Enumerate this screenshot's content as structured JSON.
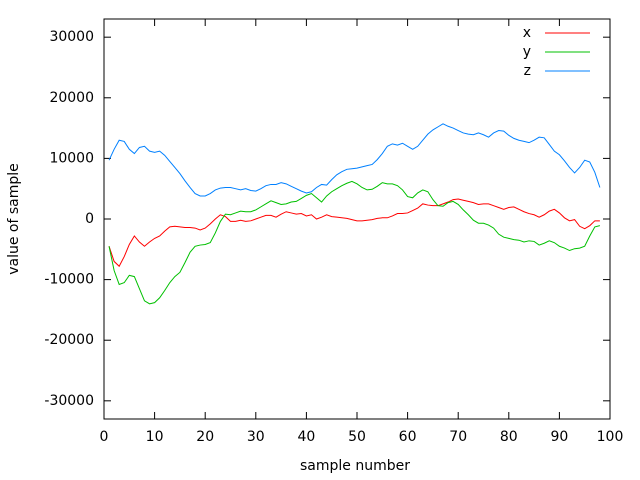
{
  "chart_data": {
    "type": "line",
    "xlabel": "sample number",
    "ylabel": "value of sample",
    "x": [
      1,
      2,
      3,
      4,
      5,
      6,
      7,
      8,
      9,
      10,
      11,
      12,
      13,
      14,
      15,
      16,
      17,
      18,
      19,
      20,
      21,
      22,
      23,
      24,
      25,
      26,
      27,
      28,
      29,
      30,
      31,
      32,
      33,
      34,
      35,
      36,
      37,
      38,
      39,
      40,
      41,
      42,
      43,
      44,
      45,
      46,
      47,
      48,
      49,
      50,
      51,
      52,
      53,
      54,
      55,
      56,
      57,
      58,
      59,
      60,
      61,
      62,
      63,
      64,
      65,
      66,
      67,
      68,
      69,
      70,
      71,
      72,
      73,
      74,
      75,
      76,
      77,
      78,
      79,
      80,
      81,
      82,
      83,
      84,
      85,
      86,
      87,
      88,
      89,
      90,
      91,
      92,
      93,
      94,
      95,
      96,
      97,
      98
    ],
    "series": [
      {
        "name": "x",
        "color": "#ff0000",
        "values": [
          -4500,
          -7000,
          -7800,
          -6200,
          -4200,
          -2800,
          -3800,
          -4500,
          -3800,
          -3200,
          -2800,
          -2000,
          -1300,
          -1200,
          -1300,
          -1400,
          -1400,
          -1500,
          -1800,
          -1500,
          -800,
          0,
          700,
          400,
          -400,
          -400,
          -200,
          -400,
          -300,
          0,
          300,
          600,
          600,
          300,
          800,
          1200,
          1000,
          800,
          900,
          500,
          700,
          0,
          300,
          700,
          400,
          300,
          200,
          100,
          -100,
          -300,
          -300,
          -200,
          -100,
          100,
          200,
          200,
          500,
          900,
          900,
          1000,
          1400,
          1800,
          2500,
          2300,
          2200,
          2200,
          2500,
          2800,
          3200,
          3300,
          3100,
          2900,
          2700,
          2400,
          2500,
          2500,
          2200,
          1900,
          1600,
          1900,
          2000,
          1600,
          1200,
          900,
          700,
          300,
          700,
          1300,
          1600,
          1000,
          200,
          -300,
          -100,
          -1200,
          -1600,
          -1100,
          -300,
          -300
        ]
      },
      {
        "name": "y",
        "color": "#00c000",
        "values": [
          -4500,
          -8500,
          -10800,
          -10500,
          -9300,
          -9500,
          -11500,
          -13500,
          -14000,
          -13800,
          -13000,
          -11800,
          -10500,
          -9500,
          -8800,
          -7200,
          -5500,
          -4500,
          -4300,
          -4200,
          -3900,
          -2300,
          -400,
          800,
          700,
          1000,
          1300,
          1200,
          1200,
          1500,
          2000,
          2500,
          3000,
          2700,
          2400,
          2500,
          2800,
          2900,
          3400,
          3900,
          4200,
          3500,
          2800,
          3800,
          4500,
          5000,
          5500,
          5900,
          6200,
          5800,
          5200,
          4800,
          4900,
          5400,
          6000,
          5800,
          5800,
          5500,
          4800,
          3700,
          3500,
          4300,
          4800,
          4500,
          3200,
          2200,
          2100,
          2700,
          2900,
          2400,
          1500,
          700,
          -200,
          -700,
          -700,
          -1000,
          -1500,
          -2500,
          -3000,
          -3200,
          -3400,
          -3500,
          -3800,
          -3600,
          -3700,
          -4300,
          -4000,
          -3600,
          -3900,
          -4500,
          -4800,
          -5200,
          -4900,
          -4800,
          -4500,
          -2800,
          -1300,
          -1100
        ]
      },
      {
        "name": "z",
        "color": "#0080ff",
        "values": [
          9700,
          11500,
          13000,
          12800,
          11500,
          10800,
          11800,
          12000,
          11200,
          11000,
          11200,
          10500,
          9500,
          8500,
          7500,
          6300,
          5200,
          4200,
          3800,
          3800,
          4200,
          4800,
          5100,
          5200,
          5200,
          5000,
          4800,
          5000,
          4700,
          4600,
          5000,
          5500,
          5700,
          5700,
          6000,
          5800,
          5400,
          5000,
          4600,
          4300,
          4500,
          5200,
          5700,
          5600,
          6500,
          7300,
          7800,
          8200,
          8300,
          8400,
          8600,
          8800,
          9000,
          9800,
          10800,
          12000,
          12400,
          12200,
          12500,
          12000,
          11500,
          12000,
          13000,
          14000,
          14700,
          15200,
          15700,
          15300,
          15000,
          14600,
          14200,
          14000,
          13900,
          14200,
          13900,
          13500,
          14200,
          14600,
          14500,
          13800,
          13300,
          13000,
          12800,
          12600,
          13000,
          13500,
          13400,
          12300,
          11200,
          10600,
          9600,
          8500,
          7600,
          8500,
          9700,
          9400,
          7700,
          5200
        ]
      }
    ],
    "xlim": [
      0,
      100
    ],
    "xticks": [
      0,
      10,
      20,
      30,
      40,
      50,
      60,
      70,
      80,
      90,
      100
    ],
    "ylim": [
      -33000,
      33000
    ],
    "yticks": [
      -30000,
      -20000,
      -10000,
      0,
      10000,
      20000,
      30000
    ],
    "grid": false,
    "legend": "upper right"
  }
}
